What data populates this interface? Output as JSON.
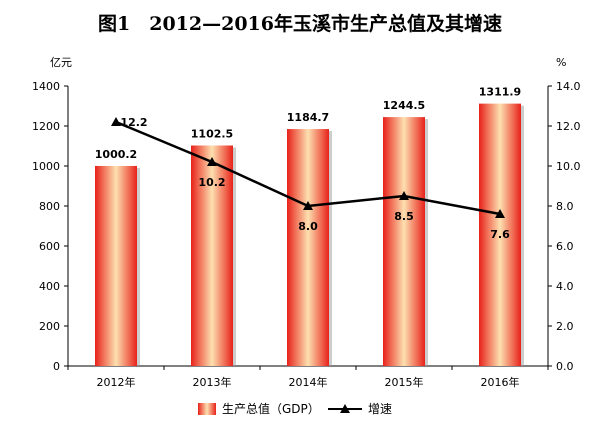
{
  "chart_data": {
    "type": "bar+line",
    "title": "图1　2012—2016年玉溪市生产总值及其增速",
    "categories": [
      "2012年",
      "2013年",
      "2014年",
      "2015年",
      "2016年"
    ],
    "series": [
      {
        "name": "生产总值（GDP）",
        "type": "bar",
        "axis": "left",
        "values": [
          1000.2,
          1102.5,
          1184.7,
          1244.5,
          1311.9
        ]
      },
      {
        "name": "增速",
        "type": "line",
        "axis": "right",
        "values": [
          12.2,
          10.2,
          8.0,
          8.5,
          7.6
        ]
      }
    ],
    "left_axis": {
      "unit": "亿元",
      "min": 0,
      "max": 1400,
      "step": 200
    },
    "right_axis": {
      "unit": "%",
      "min": 0,
      "max": 14,
      "step": 2,
      "decimals": 1
    },
    "grid": false,
    "legend_position": "bottom",
    "colors": {
      "bar_dark": "#e8221a",
      "bar_light": "#fde0b0",
      "line": "#000000"
    }
  }
}
